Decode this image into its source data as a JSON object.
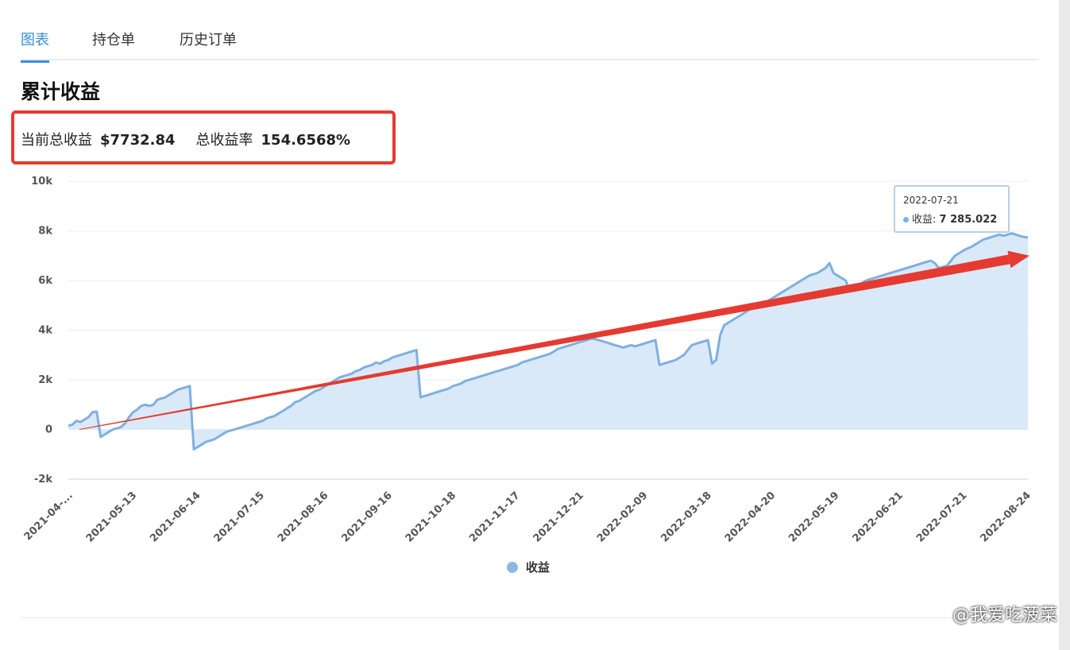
{
  "tabs": [
    {
      "label": "图表",
      "active": true
    },
    {
      "label": "持仓单",
      "active": false
    },
    {
      "label": "历史订单",
      "active": false
    }
  ],
  "page_title": "累计收益",
  "summary": {
    "total_profit_label": "当前总收益",
    "total_profit_value": "$7732.84",
    "return_rate_label": "总收益率",
    "return_rate_value": "154.6568%"
  },
  "tooltip": {
    "date": "2022-07-21",
    "series_label": "收益:",
    "value": "7 285.022"
  },
  "watermark": "@我爱吃菠菜",
  "chart_data": {
    "type": "area",
    "title": "",
    "xlabel": "",
    "ylabel": "",
    "ylim": [
      -2000,
      10000
    ],
    "y_ticks": [
      -2000,
      0,
      2000,
      4000,
      6000,
      8000,
      10000
    ],
    "y_tick_labels": [
      "-2k",
      "0",
      "2k",
      "4k",
      "6k",
      "8k",
      "10k"
    ],
    "x_tick_labels": [
      "2021-04-...",
      "2021-05-13",
      "2021-06-14",
      "2021-07-15",
      "2021-08-16",
      "2021-09-16",
      "2021-10-18",
      "2021-11-17",
      "2021-12-21",
      "2022-02-09",
      "2022-03-18",
      "2022-04-20",
      "2022-05-19",
      "2022-06-21",
      "2022-07-21",
      "2022-08-24"
    ],
    "grid": true,
    "legend": "bottom",
    "series": [
      {
        "name": "收益",
        "color": "#7fb0de",
        "fill": "#d8e8f7",
        "values": [
          150,
          200,
          350,
          300,
          400,
          500,
          700,
          720,
          -300,
          -200,
          -100,
          0,
          50,
          100,
          250,
          500,
          700,
          800,
          950,
          1000,
          950,
          1000,
          1200,
          1250,
          1300,
          1400,
          1500,
          1600,
          1650,
          1700,
          1750,
          -800,
          -700,
          -600,
          -500,
          -450,
          -400,
          -300,
          -200,
          -100,
          -50,
          0,
          50,
          100,
          150,
          200,
          250,
          300,
          350,
          450,
          500,
          550,
          650,
          750,
          850,
          950,
          1100,
          1150,
          1250,
          1350,
          1450,
          1550,
          1600,
          1700,
          1800,
          1900,
          2000,
          2100,
          2150,
          2200,
          2250,
          2350,
          2400,
          2500,
          2550,
          2600,
          2700,
          2650,
          2750,
          2800,
          2900,
          2950,
          3000,
          3050,
          3100,
          3150,
          3200,
          1300,
          1350,
          1400,
          1450,
          1500,
          1550,
          1600,
          1650,
          1750,
          1800,
          1850,
          1950,
          2000,
          2050,
          2100,
          2150,
          2200,
          2250,
          2300,
          2350,
          2400,
          2450,
          2500,
          2550,
          2600,
          2700,
          2750,
          2800,
          2850,
          2900,
          2950,
          3000,
          3050,
          3150,
          3250,
          3300,
          3350,
          3400,
          3450,
          3500,
          3550,
          3600,
          3650,
          3650,
          3600,
          3550,
          3500,
          3450,
          3400,
          3350,
          3300,
          3350,
          3400,
          3350,
          3400,
          3450,
          3500,
          3550,
          3600,
          2600,
          2650,
          2700,
          2750,
          2800,
          2900,
          3000,
          3200,
          3400,
          3450,
          3500,
          3550,
          3600,
          2650,
          2800,
          3800,
          4200,
          4300,
          4400,
          4500,
          4600,
          4700,
          4800,
          4900,
          5000,
          5050,
          5100,
          5200,
          5300,
          5400,
          5500,
          5600,
          5700,
          5800,
          5900,
          6000,
          6100,
          6200,
          6250,
          6300,
          6400,
          6500,
          6700,
          6300,
          6200,
          6100,
          6000,
          5600,
          5700,
          5800,
          5900,
          6000,
          6050,
          6100,
          6150,
          6200,
          6250,
          6300,
          6350,
          6400,
          6450,
          6500,
          6550,
          6600,
          6650,
          6700,
          6750,
          6800,
          6700,
          6500,
          6550,
          6600,
          6800,
          7000,
          7100,
          7200,
          7285,
          7350,
          7450,
          7550,
          7650,
          7700,
          7750,
          7800,
          7850,
          7800,
          7850,
          7900,
          7850,
          7800,
          7750,
          7733
        ]
      }
    ],
    "annotations": [
      {
        "type": "arrow",
        "color": "#e53a32",
        "from": {
          "x_label": "2021-04-...",
          "y": 0
        },
        "to": {
          "x_label": "2022-08-24",
          "y": 7000
        }
      }
    ]
  }
}
